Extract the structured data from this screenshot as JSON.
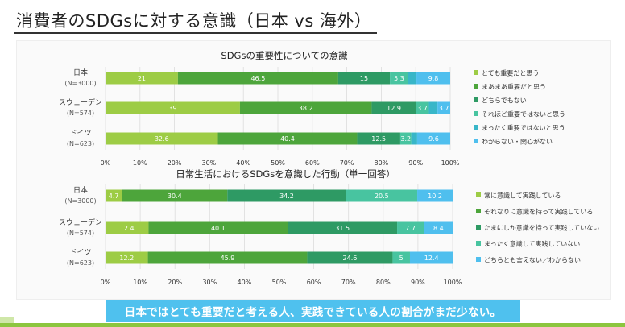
{
  "page": {
    "title": "消費者のSDGsに対する意識（日本 vs 海外）",
    "banner": "日本ではとても重要だと考える人、実践できている人の割合がまだ少ない。"
  },
  "chart_data": [
    {
      "type": "bar",
      "orientation": "horizontal",
      "stacked": true,
      "title": "SDGsの重要性についての意識",
      "categories": [
        [
          "日本",
          "(N=3000)"
        ],
        [
          "スウェーデン",
          "(N=574)"
        ],
        [
          "ドイツ",
          "(N=623)"
        ]
      ],
      "xlim": [
        0,
        100
      ],
      "xticks": [
        "0%",
        "10%",
        "20%",
        "30%",
        "40%",
        "50%",
        "60%",
        "70%",
        "80%",
        "90%",
        "100%"
      ],
      "legend_position": "right",
      "series": [
        {
          "name": "とても重要だと思う",
          "color": "#9dcc45",
          "values": [
            21,
            39,
            32.6
          ]
        },
        {
          "name": "まあまあ重要だと思う",
          "color": "#4da53b",
          "values": [
            46.5,
            38.2,
            40.4
          ]
        },
        {
          "name": "どちらでもない",
          "color": "#2e9a64",
          "values": [
            15,
            12.9,
            12.5
          ]
        },
        {
          "name": "それほど重要ではないと思う",
          "color": "#48c4a0",
          "values": [
            5.3,
            3.7,
            3.2
          ]
        },
        {
          "name": "まったく重要ではないと思う",
          "color": "#38b6c8",
          "values": [
            2.4,
            2.5,
            1.7
          ]
        },
        {
          "name": "わからない・関心がない",
          "color": "#4fbfee",
          "values": [
            9.8,
            3.7,
            9.6
          ]
        }
      ],
      "labels": [
        [
          "21",
          "46.5",
          "15",
          "5.3",
          "",
          "9.8"
        ],
        [
          "39",
          "38.2",
          "12.9",
          "3.7",
          "",
          "3.7"
        ],
        [
          "32.6",
          "40.4",
          "12.5",
          "3.2",
          "",
          "9.6"
        ]
      ]
    },
    {
      "type": "bar",
      "orientation": "horizontal",
      "stacked": true,
      "title": "日常生活におけるSDGsを意識した行動（単一回答）",
      "categories": [
        [
          "日本",
          "(N=3000)"
        ],
        [
          "スウェーデン",
          "(N=574)"
        ],
        [
          "ドイツ",
          "(N=623)"
        ]
      ],
      "xlim": [
        0,
        100
      ],
      "xticks": [
        "0%",
        "10%",
        "20%",
        "30%",
        "40%",
        "50%",
        "60%",
        "70%",
        "80%",
        "90%",
        "100%"
      ],
      "legend_position": "right",
      "series": [
        {
          "name": "常に意識して実践している",
          "color": "#9dcc45",
          "values": [
            4.7,
            12.4,
            12.2
          ]
        },
        {
          "name": "それなりに意識を持って実践している",
          "color": "#4da53b",
          "values": [
            30.4,
            40.1,
            45.9
          ]
        },
        {
          "name": "たまにしか意識を持って実践していない",
          "color": "#2e9a64",
          "values": [
            34.2,
            31.5,
            24.6
          ]
        },
        {
          "name": "まったく意識して実践していない",
          "color": "#48c4a0",
          "values": [
            20.5,
            7.7,
            5
          ]
        },
        {
          "name": "どちらとも言えない／わからない",
          "color": "#4fbfee",
          "values": [
            10.2,
            8.4,
            12.4
          ]
        }
      ],
      "labels": [
        [
          "4.7",
          "30.4",
          "34.2",
          "20.5",
          "10.2"
        ],
        [
          "12.4",
          "40.1",
          "31.5",
          "7.7",
          "8.4"
        ],
        [
          "12.2",
          "45.9",
          "24.6",
          "5",
          "12.4"
        ]
      ]
    }
  ]
}
